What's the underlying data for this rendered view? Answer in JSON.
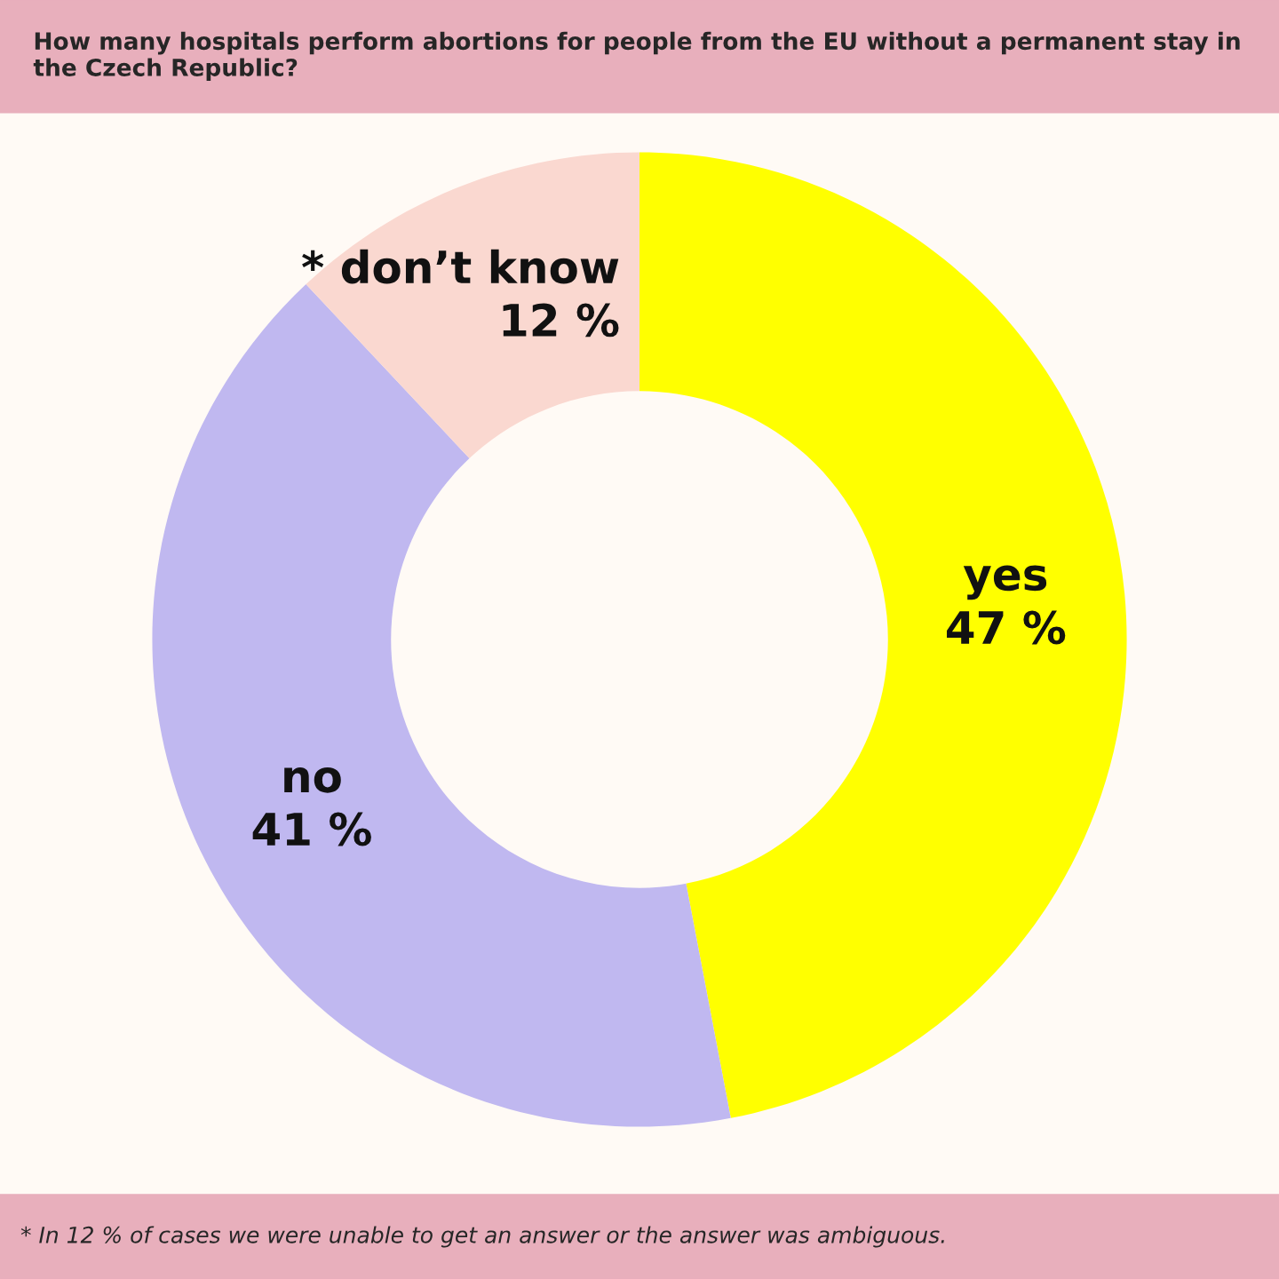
{
  "chart_data": {
    "type": "donut",
    "title": "How many hospitals perform abortions for people from the EU without a permanent stay in the Czech Republic?",
    "categories": [
      "yes",
      "no",
      "* don’t know"
    ],
    "values": [
      47,
      41,
      12
    ],
    "value_labels": [
      "47 %",
      "41 %",
      "12 %"
    ],
    "colors": [
      "#ffff00",
      "#c0b8f0",
      "#fad8d0"
    ],
    "annotations": [
      "* In 12 % of cases we were unable to get an answer or the answer was ambiguous."
    ]
  }
}
